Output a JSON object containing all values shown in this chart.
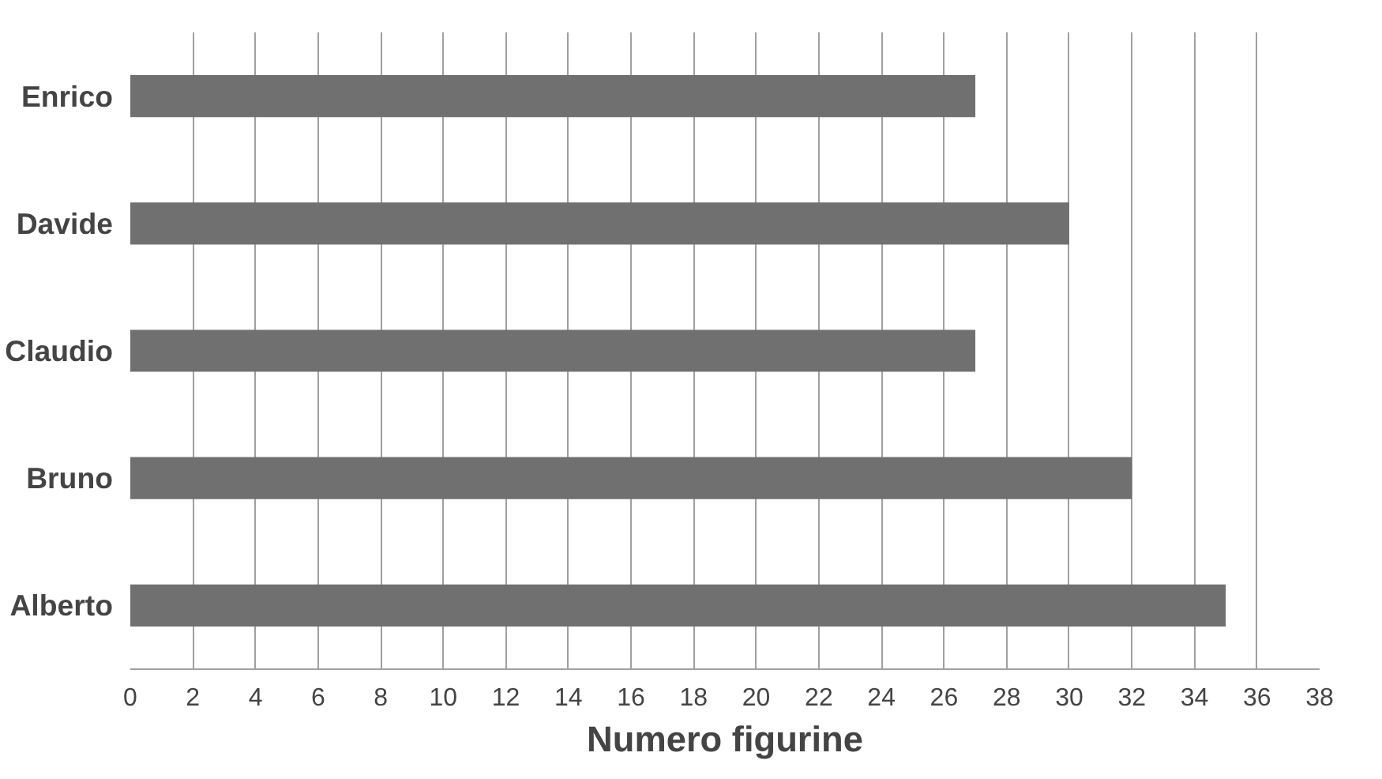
{
  "chart_data": {
    "type": "bar",
    "orientation": "horizontal",
    "xlabel": "Numero figurine",
    "categories": [
      "Enrico",
      "Davide",
      "Claudio",
      "Bruno",
      "Alberto"
    ],
    "values": [
      27,
      30,
      27,
      32,
      35
    ],
    "color": "#707070",
    "xlim": [
      0,
      38
    ],
    "xticks": [
      0,
      2,
      4,
      6,
      8,
      10,
      12,
      14,
      16,
      18,
      20,
      22,
      24,
      26,
      28,
      30,
      32,
      34,
      36,
      38
    ],
    "grid": "x"
  }
}
